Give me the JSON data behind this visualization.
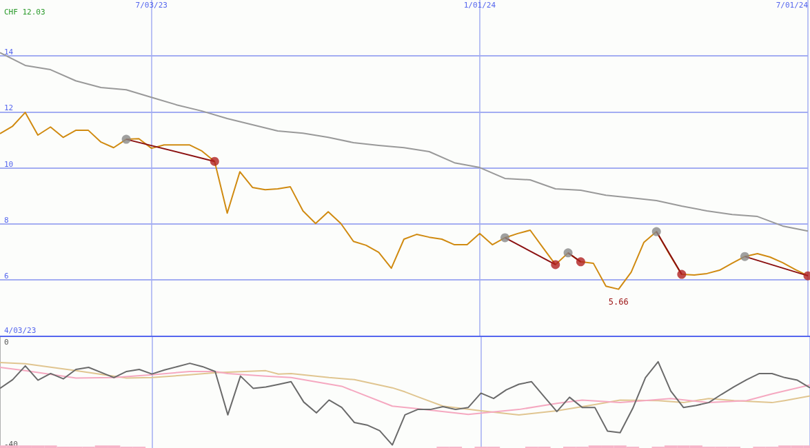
{
  "chart_data": [
    {
      "type": "line",
      "xlim": [
        "2023-04-10",
        "2024-07-01"
      ],
      "xticks": [
        {
          "value": "2023-07-03",
          "label": "7/03/23"
        },
        {
          "value": "2024-01-01",
          "label": "1/01/24"
        },
        {
          "value": "2024-07-01",
          "label": "7/01/24"
        }
      ],
      "ylim": [
        4,
        16
      ],
      "yticks": [
        6,
        8,
        10,
        12,
        14
      ],
      "grid": true,
      "marker": "none",
      "annotations": [
        "CHF 12.03",
        "4/03/23",
        {
          "text": "5.66",
          "x": "2024-03-18",
          "y": 5.66
        }
      ],
      "x": [
        "2023-04-10",
        "2023-04-17",
        "2023-04-24",
        "2023-05-01",
        "2023-05-08",
        "2023-05-15",
        "2023-05-22",
        "2023-05-29",
        "2023-06-05",
        "2023-06-12",
        "2023-06-19",
        "2023-06-26",
        "2023-07-03",
        "2023-07-10",
        "2023-07-17",
        "2023-07-24",
        "2023-07-31",
        "2023-08-07",
        "2023-08-14",
        "2023-08-21",
        "2023-08-28",
        "2023-09-04",
        "2023-09-11",
        "2023-09-18",
        "2023-09-25",
        "2023-10-02",
        "2023-10-09",
        "2023-10-16",
        "2023-10-23",
        "2023-10-30",
        "2023-11-06",
        "2023-11-13",
        "2023-11-20",
        "2023-11-27",
        "2023-12-04",
        "2023-12-11",
        "2023-12-18",
        "2023-12-25",
        "2024-01-01",
        "2024-01-08",
        "2024-01-15",
        "2024-01-22",
        "2024-01-29",
        "2024-02-05",
        "2024-02-12",
        "2024-02-19",
        "2024-02-26",
        "2024-03-04",
        "2024-03-11",
        "2024-03-18",
        "2024-03-25",
        "2024-04-01",
        "2024-04-08",
        "2024-04-15",
        "2024-04-22",
        "2024-04-29",
        "2024-05-06",
        "2024-05-13",
        "2024-05-20",
        "2024-05-27",
        "2024-06-03",
        "2024-06-10",
        "2024-06-17",
        "2024-06-24",
        "2024-07-01"
      ],
      "series": [
        {
          "color": "#999999",
          "x": [
            "2023-04-10",
            "2023-04-24",
            "2023-05-08",
            "2023-05-22",
            "2023-06-05",
            "2023-06-19",
            "2023-07-03",
            "2023-07-17",
            "2023-07-31",
            "2023-08-14",
            "2023-08-28",
            "2023-09-11",
            "2023-09-25",
            "2023-10-09",
            "2023-10-23",
            "2023-11-06",
            "2023-11-20",
            "2023-12-04",
            "2023-12-18",
            "2024-01-01",
            "2024-01-15",
            "2024-01-29",
            "2024-02-12",
            "2024-02-26",
            "2024-03-11",
            "2024-03-25",
            "2024-04-08",
            "2024-04-22",
            "2024-05-06",
            "2024-05-20",
            "2024-06-03",
            "2024-06-17",
            "2024-07-01"
          ],
          "values": [
            14.12,
            13.66,
            13.51,
            13.11,
            12.87,
            12.79,
            12.52,
            12.25,
            12.03,
            11.76,
            11.54,
            11.32,
            11.24,
            11.09,
            10.9,
            10.8,
            10.72,
            10.58,
            10.18,
            10.01,
            9.62,
            9.57,
            9.25,
            9.2,
            9.02,
            8.93,
            8.83,
            8.63,
            8.46,
            8.33,
            8.26,
            7.92,
            7.74
          ]
        },
        {
          "color": "#d08a10",
          "values": [
            11.22,
            11.49,
            11.98,
            11.17,
            11.46,
            11.09,
            11.34,
            11.34,
            10.92,
            10.72,
            11.02,
            11.04,
            10.7,
            10.82,
            10.82,
            10.82,
            10.6,
            10.23,
            8.38,
            9.86,
            9.3,
            9.22,
            9.25,
            9.32,
            8.46,
            8.01,
            8.43,
            8.01,
            7.37,
            7.23,
            6.98,
            6.41,
            7.45,
            7.62,
            7.52,
            7.45,
            7.25,
            7.25,
            7.65,
            7.25,
            7.5,
            7.65,
            7.77,
            7.15,
            6.54,
            6.96,
            6.64,
            6.59,
            5.77,
            5.66,
            6.27,
            7.33,
            7.72,
            6.93,
            6.19,
            6.17,
            6.22,
            6.34,
            6.59,
            6.83,
            6.93,
            6.81,
            6.61,
            6.36,
            6.14
          ]
        },
        {
          "color": "#8b1010",
          "x": [
            "2023-06-19",
            "2023-08-07"
          ],
          "values": [
            11.02,
            10.23
          ]
        },
        {
          "color": "#8b1010",
          "x": [
            "2024-01-15",
            "2024-02-12"
          ],
          "values": [
            7.5,
            6.54
          ]
        },
        {
          "color": "#8b1010",
          "x": [
            "2024-02-19",
            "2024-02-26"
          ],
          "values": [
            6.96,
            6.64
          ]
        },
        {
          "color": "#8b1010",
          "x": [
            "2024-04-08",
            "2024-04-22"
          ],
          "values": [
            7.72,
            6.19
          ]
        },
        {
          "color": "#8b1010",
          "x": [
            "2024-05-27",
            "2024-07-01"
          ],
          "values": [
            6.83,
            6.14
          ]
        },
        {
          "type": "scatter",
          "marker": "circle",
          "color": "#888888",
          "x": [
            "2023-06-19",
            "2024-01-15",
            "2024-02-19",
            "2024-04-08",
            "2024-05-27"
          ],
          "values": [
            11.02,
            7.5,
            6.96,
            7.72,
            6.83
          ]
        },
        {
          "type": "scatter",
          "marker": "circle",
          "color": "#b02020",
          "x": [
            "2023-08-07",
            "2024-02-12",
            "2024-02-26",
            "2024-04-22",
            "2024-07-01"
          ],
          "values": [
            10.23,
            6.54,
            6.64,
            6.19,
            6.14
          ]
        }
      ]
    },
    {
      "type": "line",
      "xlim": [
        "2023-04-10",
        "2024-07-01"
      ],
      "xticks": [
        {
          "value": "2023-07-03",
          "label": null
        },
        {
          "value": "2024-01-01",
          "label": null
        },
        {
          "value": "2024-07-01",
          "label": null
        }
      ],
      "ylim": [
        -41.5,
        2
      ],
      "yticks": [
        0,
        -40
      ],
      "grid": "x",
      "tick_labels": "y",
      "marker": "none",
      "x": [
        "2023-04-10",
        "2023-04-17",
        "2023-04-24",
        "2023-05-01",
        "2023-05-08",
        "2023-05-15",
        "2023-05-22",
        "2023-05-29",
        "2023-06-05",
        "2023-06-12",
        "2023-06-19",
        "2023-06-26",
        "2023-07-03",
        "2023-07-10",
        "2023-07-17",
        "2023-07-24",
        "2023-07-31",
        "2023-08-07",
        "2023-08-14",
        "2023-08-21",
        "2023-08-28",
        "2023-09-04",
        "2023-09-11",
        "2023-09-18",
        "2023-09-25",
        "2023-10-02",
        "2023-10-09",
        "2023-10-16",
        "2023-10-23",
        "2023-10-30",
        "2023-11-06",
        "2023-11-13",
        "2023-11-20",
        "2023-11-27",
        "2023-12-04",
        "2023-12-11",
        "2023-12-18",
        "2023-12-25",
        "2024-01-01",
        "2024-01-08",
        "2024-01-15",
        "2024-01-22",
        "2024-01-29",
        "2024-02-05",
        "2024-02-12",
        "2024-02-19",
        "2024-02-26",
        "2024-03-04",
        "2024-03-11",
        "2024-03-18",
        "2024-03-25",
        "2024-04-01",
        "2024-04-08",
        "2024-04-15",
        "2024-04-22",
        "2024-04-29",
        "2024-05-06",
        "2024-05-13",
        "2024-05-20",
        "2024-05-27",
        "2024-06-03",
        "2024-06-10",
        "2024-06-17",
        "2024-06-24",
        "2024-07-01"
      ],
      "series": [
        {
          "type": "bar",
          "color": "#f7b3c8",
          "base": [
            -41.5,
            -41.5,
            -41.5,
            -41.5,
            -41.5,
            -41.5,
            -41.5,
            -41.5,
            -41.5,
            -41.5,
            -41.5,
            -41.5,
            null,
            null,
            null,
            null,
            null,
            null,
            null,
            null,
            null,
            null,
            null,
            null,
            null,
            null,
            null,
            null,
            null,
            null,
            null,
            null,
            null,
            null,
            null,
            -41.5,
            -41.5,
            null,
            -41.5,
            -41.5,
            null,
            null,
            -41.5,
            -41.5,
            null,
            -41.5,
            -41.5,
            -41.5,
            -41.5,
            -41.5,
            -41.5,
            null,
            -41.5,
            -41.5,
            -41.5,
            -41.5,
            -41.5,
            -41.5,
            -41.5,
            null,
            -41.5,
            -41.5,
            -41.5,
            -41.5,
            -41.5
          ],
          "values": [
            1,
            1,
            1,
            1,
            1,
            0.5,
            0.5,
            0.5,
            1,
            1,
            0.5,
            0.5,
            null,
            null,
            null,
            null,
            null,
            null,
            null,
            null,
            null,
            null,
            null,
            null,
            null,
            null,
            null,
            null,
            null,
            null,
            null,
            null,
            null,
            null,
            null,
            0.5,
            0.5,
            null,
            0.5,
            0.5,
            null,
            null,
            0.5,
            0.5,
            null,
            0.5,
            0.5,
            1,
            1,
            1,
            0.5,
            null,
            0.5,
            1,
            1,
            1,
            0.5,
            0.5,
            0.5,
            null,
            0.5,
            0.5,
            1,
            1,
            1
          ]
        },
        {
          "color": "#e0c590",
          "x": [
            "2023-04-10",
            "2023-04-24",
            "2023-05-22",
            "2023-06-19",
            "2023-07-03",
            "2023-07-24",
            "2023-08-07",
            "2023-09-04",
            "2023-09-11",
            "2023-09-18",
            "2023-10-09",
            "2023-10-23",
            "2023-11-13",
            "2023-11-20",
            "2023-11-27",
            "2023-12-11",
            "2024-01-01",
            "2024-01-22",
            "2024-02-12",
            "2024-03-04",
            "2024-03-18",
            "2024-04-08",
            "2024-04-22",
            "2024-05-06",
            "2024-05-20",
            "2024-06-10",
            "2024-06-17",
            "2024-07-01"
          ],
          "values": [
            -8,
            -8.5,
            -11.2,
            -14.1,
            -13.9,
            -12.8,
            -12,
            -11.2,
            -12.5,
            -12.3,
            -13.9,
            -14.7,
            -17.9,
            -19.5,
            -21.4,
            -25.1,
            -26.9,
            -28.5,
            -26.9,
            -24.5,
            -22.7,
            -22.9,
            -23.7,
            -22.1,
            -22.9,
            -23.7,
            -22.9,
            -21.1
          ]
        },
        {
          "color": "#f5a8c0",
          "x": [
            "2023-04-10",
            "2023-04-24",
            "2023-05-22",
            "2023-06-12",
            "2023-07-03",
            "2023-07-24",
            "2023-08-07",
            "2023-08-14",
            "2023-09-04",
            "2023-09-18",
            "2023-10-16",
            "2023-11-13",
            "2023-11-27",
            "2023-12-25",
            "2024-01-22",
            "2024-02-12",
            "2024-02-26",
            "2024-03-18",
            "2024-04-15",
            "2024-05-06",
            "2024-05-27",
            "2024-06-10",
            "2024-07-01"
          ],
          "values": [
            -9.9,
            -11.2,
            -14.1,
            -13.9,
            -12.8,
            -11.5,
            -11.5,
            -12.3,
            -13.3,
            -13.9,
            -17.3,
            -25.1,
            -26.1,
            -28.3,
            -26.4,
            -24,
            -22.7,
            -23.7,
            -22.1,
            -23.7,
            -22.9,
            -20.3,
            -16.8
          ]
        },
        {
          "color": "#6a6a6a",
          "values": [
            -18.1,
            -14.7,
            -9.3,
            -14.9,
            -12.3,
            -14.4,
            -10.7,
            -9.9,
            -11.9,
            -13.9,
            -11.5,
            -10.7,
            -12.5,
            -10.9,
            -9.6,
            -8.3,
            -9.6,
            -11.5,
            -28.5,
            -13.3,
            -18.1,
            -17.6,
            -16.6,
            -15.5,
            -23.5,
            -27.7,
            -22.7,
            -25.6,
            -31.5,
            -32.5,
            -34.7,
            -40.3,
            -28.5,
            -26.4,
            -26.4,
            -25.3,
            -26.4,
            -25.6,
            -20,
            -22.1,
            -18.7,
            -16.5,
            -15.5,
            -21.4,
            -27.2,
            -21.6,
            -25.6,
            -25.6,
            -34.9,
            -35.5,
            -25.9,
            -13.9,
            -7.7,
            -19.2,
            -25.6,
            -24.8,
            -23.7,
            -20.5,
            -17.5,
            -14.7,
            -12.3,
            -12.3,
            -13.9,
            -14.9,
            -17.9
          ]
        }
      ]
    }
  ]
}
